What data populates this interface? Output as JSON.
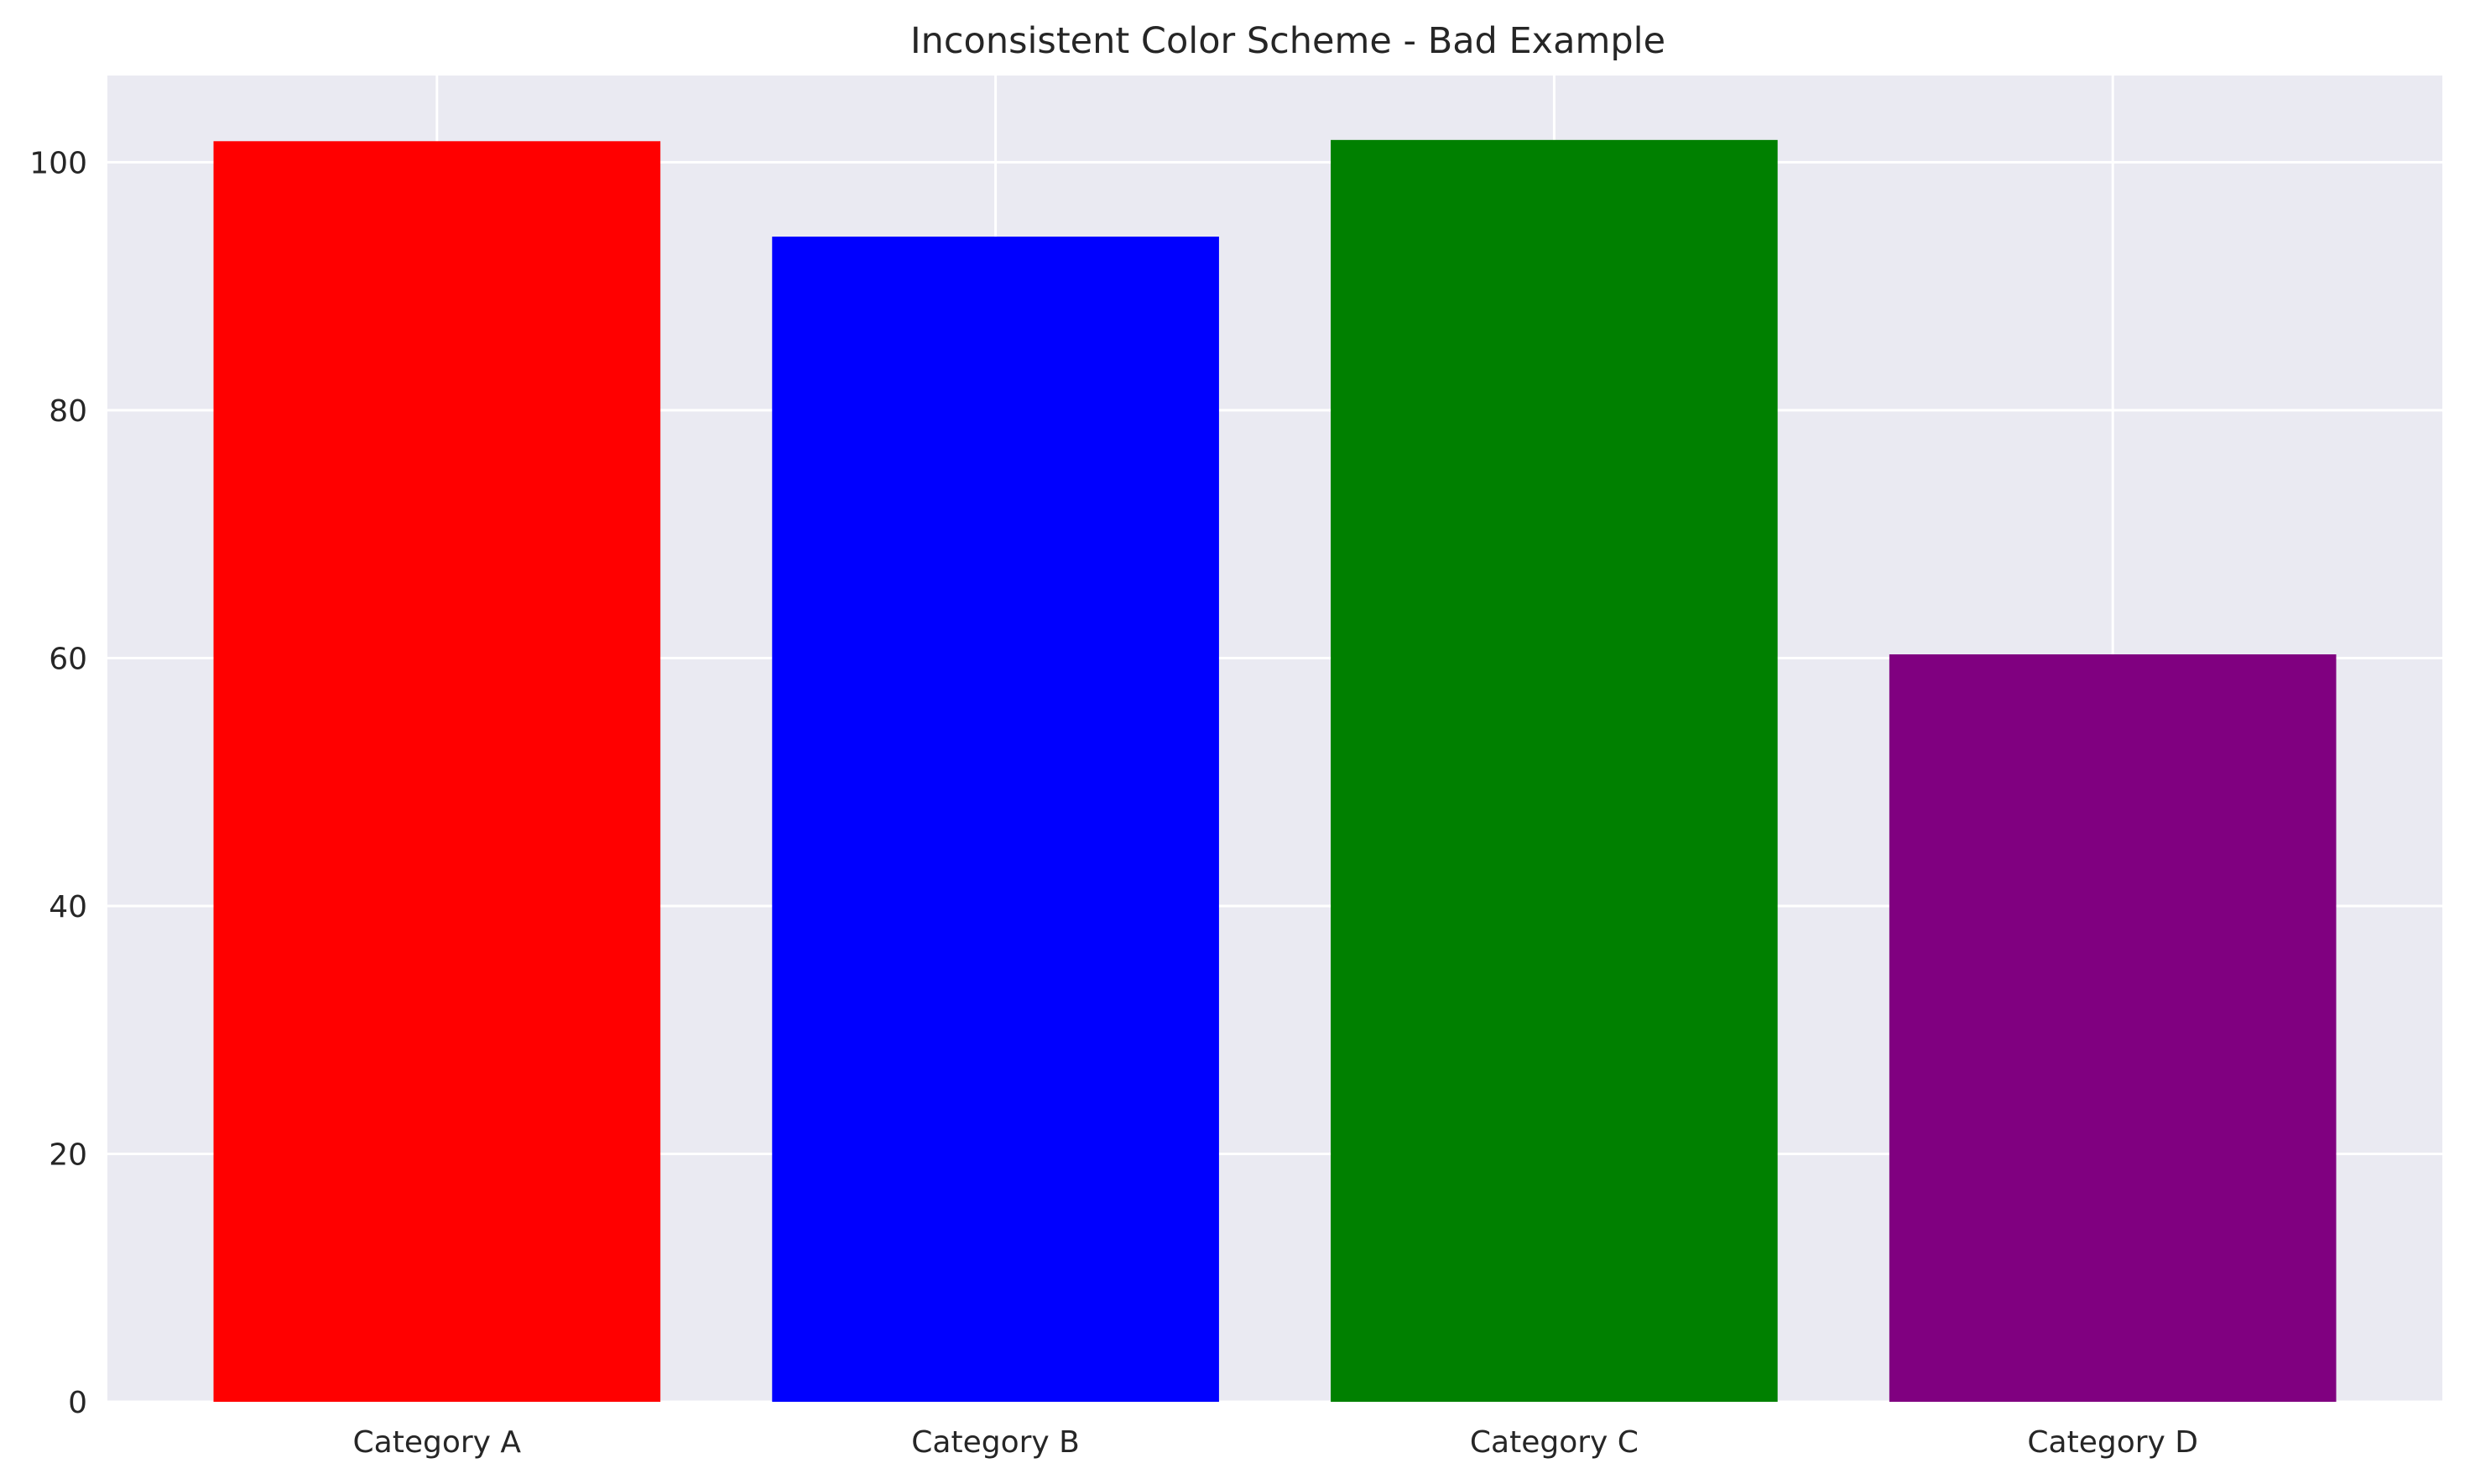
{
  "chart_data": {
    "type": "bar",
    "title": "Inconsistent Color Scheme - Bad Example",
    "xlabel": "",
    "ylabel": "",
    "categories": [
      "Category A",
      "Category B",
      "Category C",
      "Category D"
    ],
    "values": [
      101.7,
      94.0,
      101.8,
      60.3
    ],
    "colors": [
      "#ff0000",
      "#0000ff",
      "#008000",
      "#800080"
    ],
    "ylim": [
      0,
      107
    ],
    "yticks": [
      0,
      20,
      40,
      60,
      80,
      100
    ],
    "grid": true,
    "background": "#eaeaf2"
  }
}
